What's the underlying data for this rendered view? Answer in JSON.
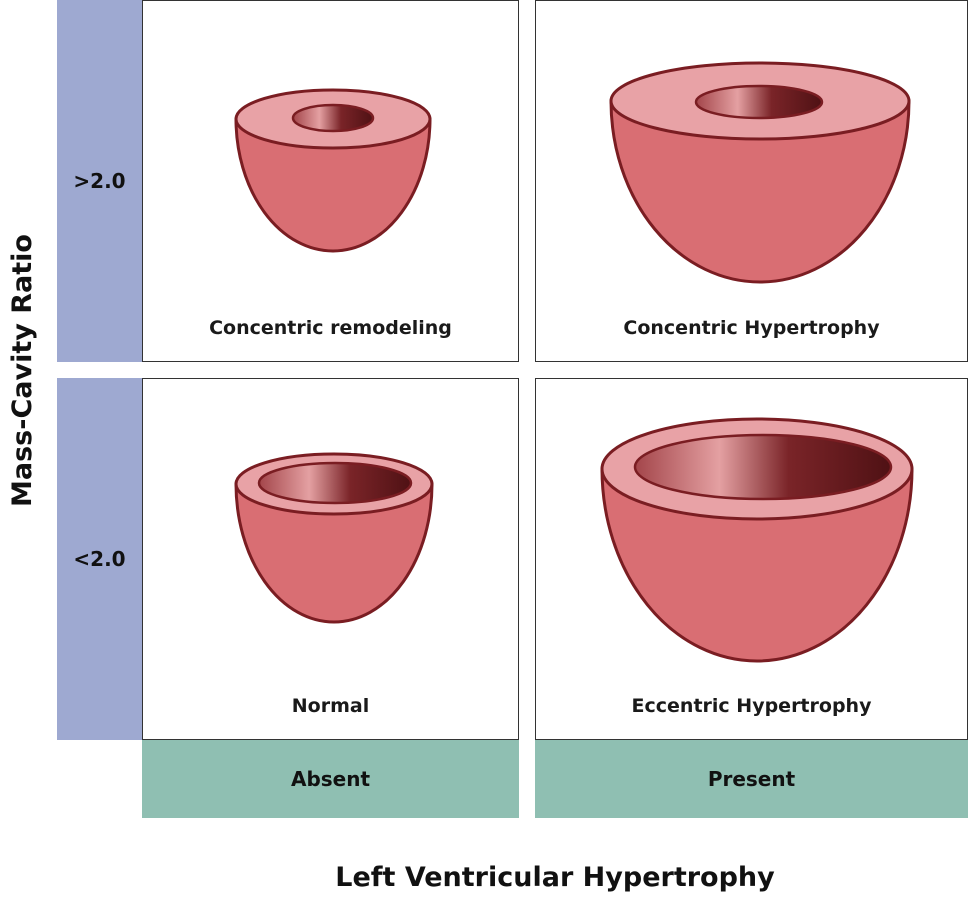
{
  "axes": {
    "y_title": "Mass-Cavity Ratio",
    "x_title": "Left Ventricular Hypertrophy",
    "rows": [
      ">2.0",
      "<2.0"
    ],
    "columns": [
      "Absent",
      "Present"
    ]
  },
  "cells": {
    "top_left": "Concentric remodeling",
    "top_right": "Concentric Hypertrophy",
    "bottom_left": "Normal",
    "bottom_right": "Eccentric Hypertrophy"
  },
  "colors": {
    "row_band": "#9ea9d1",
    "column_band": "#8fbfb2",
    "wall": "#d96e73",
    "rim": "#e8a2a6",
    "outline": "#7a1d22",
    "cavity_dark": "#4f1114",
    "cavity_light": "#e4a0a2"
  }
}
